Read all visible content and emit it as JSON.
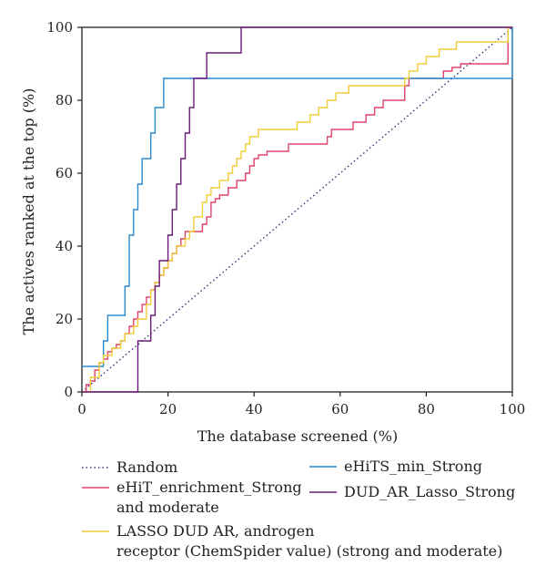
{
  "chart_data": {
    "type": "line",
    "xlabel": "The database screened (%)",
    "ylabel": "The actives ranked at the top (%)",
    "xlim": [
      0,
      100
    ],
    "ylim": [
      0,
      100
    ],
    "xticks": [
      0,
      20,
      40,
      60,
      80,
      100
    ],
    "yticks": [
      0,
      20,
      40,
      60,
      80,
      100
    ],
    "grid": false,
    "legend_position": "bottom",
    "series": [
      {
        "name": "Random",
        "color": "#33337a",
        "style": "dotted",
        "points": [
          [
            0,
            0
          ],
          [
            100,
            100
          ]
        ]
      },
      {
        "name": "eHiT_enrichment_Strong and moderate",
        "legend_lines": [
          "eHiT_enrichment_Strong",
          "and moderate"
        ],
        "color": "#e0426a",
        "style": "step",
        "points": [
          [
            0,
            0
          ],
          [
            1,
            2
          ],
          [
            2,
            3
          ],
          [
            3,
            6
          ],
          [
            4,
            8
          ],
          [
            5,
            9
          ],
          [
            6,
            11
          ],
          [
            7,
            12
          ],
          [
            8,
            13
          ],
          [
            9,
            14
          ],
          [
            10,
            16
          ],
          [
            11,
            18
          ],
          [
            12,
            20
          ],
          [
            13,
            22
          ],
          [
            14,
            24
          ],
          [
            15,
            26
          ],
          [
            16,
            28
          ],
          [
            17,
            30
          ],
          [
            18,
            32
          ],
          [
            19,
            34
          ],
          [
            20,
            36
          ],
          [
            21,
            38
          ],
          [
            22,
            40
          ],
          [
            23,
            42
          ],
          [
            24,
            44
          ],
          [
            27,
            44
          ],
          [
            28,
            46
          ],
          [
            29,
            48
          ],
          [
            30,
            52
          ],
          [
            31,
            53
          ],
          [
            32,
            54
          ],
          [
            34,
            56
          ],
          [
            36,
            58
          ],
          [
            38,
            60
          ],
          [
            39,
            62
          ],
          [
            40,
            64
          ],
          [
            41,
            65
          ],
          [
            43,
            66
          ],
          [
            47,
            66
          ],
          [
            48,
            68
          ],
          [
            56,
            68
          ],
          [
            57,
            70
          ],
          [
            58,
            72
          ],
          [
            62,
            72
          ],
          [
            63,
            74
          ],
          [
            65,
            74
          ],
          [
            66,
            76
          ],
          [
            68,
            78
          ],
          [
            70,
            80
          ],
          [
            74,
            80
          ],
          [
            75,
            84
          ],
          [
            76,
            86
          ],
          [
            83,
            86
          ],
          [
            84,
            88
          ],
          [
            86,
            89
          ],
          [
            88,
            90
          ],
          [
            97,
            90
          ],
          [
            99,
            100
          ],
          [
            100,
            100
          ]
        ]
      },
      {
        "name": "eHiTS_min_Strong",
        "color": "#2a8ad0",
        "style": "step",
        "points": [
          [
            0,
            7
          ],
          [
            4,
            7
          ],
          [
            5,
            14
          ],
          [
            6,
            21
          ],
          [
            9,
            21
          ],
          [
            10,
            29
          ],
          [
            11,
            43
          ],
          [
            12,
            50
          ],
          [
            13,
            57
          ],
          [
            14,
            64
          ],
          [
            15,
            64
          ],
          [
            16,
            71
          ],
          [
            17,
            78
          ],
          [
            18,
            78
          ],
          [
            19,
            86
          ],
          [
            99,
            86
          ],
          [
            100,
            100
          ]
        ]
      },
      {
        "name": "LASSO DUD AR, androgen receptor (ChemSpider value) (strong and moderate)",
        "legend_lines": [
          "LASSO DUD AR, androgen",
          "receptor (ChemSpider value) (strong and moderate)"
        ],
        "color": "#f2cc3a",
        "style": "step",
        "points": [
          [
            0,
            0
          ],
          [
            2,
            4
          ],
          [
            4,
            8
          ],
          [
            5,
            10
          ],
          [
            7,
            12
          ],
          [
            9,
            14
          ],
          [
            10,
            16
          ],
          [
            12,
            18
          ],
          [
            13,
            20
          ],
          [
            15,
            24
          ],
          [
            16,
            28
          ],
          [
            17,
            30
          ],
          [
            18,
            32
          ],
          [
            19,
            34
          ],
          [
            20,
            36
          ],
          [
            21,
            38
          ],
          [
            22,
            40
          ],
          [
            24,
            42
          ],
          [
            25,
            44
          ],
          [
            26,
            48
          ],
          [
            28,
            52
          ],
          [
            29,
            54
          ],
          [
            30,
            56
          ],
          [
            32,
            58
          ],
          [
            34,
            60
          ],
          [
            35,
            62
          ],
          [
            36,
            64
          ],
          [
            37,
            66
          ],
          [
            38,
            68
          ],
          [
            39,
            70
          ],
          [
            41,
            72
          ],
          [
            49,
            72
          ],
          [
            50,
            74
          ],
          [
            53,
            76
          ],
          [
            55,
            78
          ],
          [
            57,
            80
          ],
          [
            59,
            82
          ],
          [
            62,
            84
          ],
          [
            74,
            84
          ],
          [
            75,
            86
          ],
          [
            76,
            88
          ],
          [
            78,
            90
          ],
          [
            80,
            92
          ],
          [
            83,
            94
          ],
          [
            87,
            96
          ],
          [
            97,
            96
          ],
          [
            99,
            100
          ],
          [
            100,
            100
          ]
        ]
      },
      {
        "name": "DUD_AR_Lasso_Strong",
        "color": "#6c1a7a",
        "style": "step",
        "points": [
          [
            0,
            0
          ],
          [
            12,
            0
          ],
          [
            13,
            14
          ],
          [
            15,
            14
          ],
          [
            16,
            21
          ],
          [
            17,
            29
          ],
          [
            18,
            36
          ],
          [
            20,
            43
          ],
          [
            21,
            50
          ],
          [
            22,
            57
          ],
          [
            23,
            64
          ],
          [
            24,
            71
          ],
          [
            25,
            78
          ],
          [
            26,
            86
          ],
          [
            28,
            86
          ],
          [
            29,
            93
          ],
          [
            36,
            93
          ],
          [
            37,
            100
          ],
          [
            100,
            100
          ]
        ]
      }
    ]
  }
}
